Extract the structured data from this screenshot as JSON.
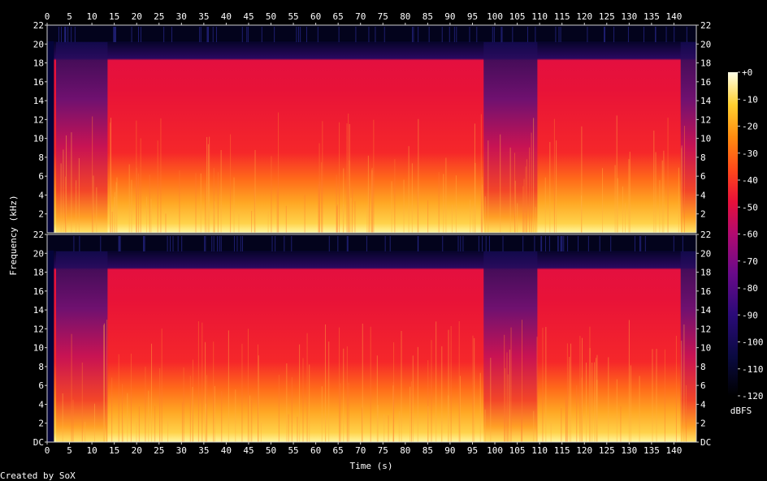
{
  "chart_data": {
    "type": "heatmap",
    "title": "",
    "xlabel": "Time (s)",
    "ylabel": "Frequency (kHz)",
    "x_ticks": [
      "0",
      "5",
      "10",
      "15",
      "20",
      "25",
      "30",
      "35",
      "40",
      "45",
      "50",
      "55",
      "60",
      "65",
      "70",
      "75",
      "80",
      "85",
      "90",
      "95",
      "100",
      "105",
      "110",
      "115",
      "120",
      "125",
      "130",
      "135",
      "140"
    ],
    "x_range": [
      0,
      145
    ],
    "channels": [
      {
        "y_ticks_left": [
          "22",
          "20",
          "18",
          "16",
          "14",
          "12",
          "10",
          "8",
          "6",
          "4",
          "2"
        ],
        "y_ticks_right": [
          "22",
          "20",
          "18",
          "16",
          "14",
          "12",
          "10",
          "8",
          "6",
          "4",
          "2"
        ],
        "y_range_khz": [
          0,
          22
        ]
      },
      {
        "y_ticks_left": [
          "22",
          "20",
          "18",
          "16",
          "14",
          "12",
          "10",
          "8",
          "6",
          "4",
          "2",
          "DC"
        ],
        "y_ticks_right": [
          "22",
          "20",
          "18",
          "16",
          "14",
          "12",
          "10",
          "8",
          "6",
          "4",
          "2",
          "DC"
        ],
        "y_range_khz": [
          0,
          22
        ]
      }
    ],
    "colorbar": {
      "ticks": [
        "+0",
        "-10",
        "-20",
        "-30",
        "-40",
        "-50",
        "-60",
        "-70",
        "-80",
        "-90",
        "-100",
        "-110",
        "-120"
      ],
      "range_dbfs": [
        -120,
        0
      ],
      "unit": "dBFS"
    },
    "lowpass_cutoff_khz": 20,
    "silent_intervals_s": [
      [
        0,
        1.5
      ]
    ],
    "quiet_intervals_s": [
      [
        2,
        13.5
      ],
      [
        97.5,
        109.5
      ],
      [
        141.5,
        145
      ]
    ]
  },
  "credit": "Created by SoX"
}
